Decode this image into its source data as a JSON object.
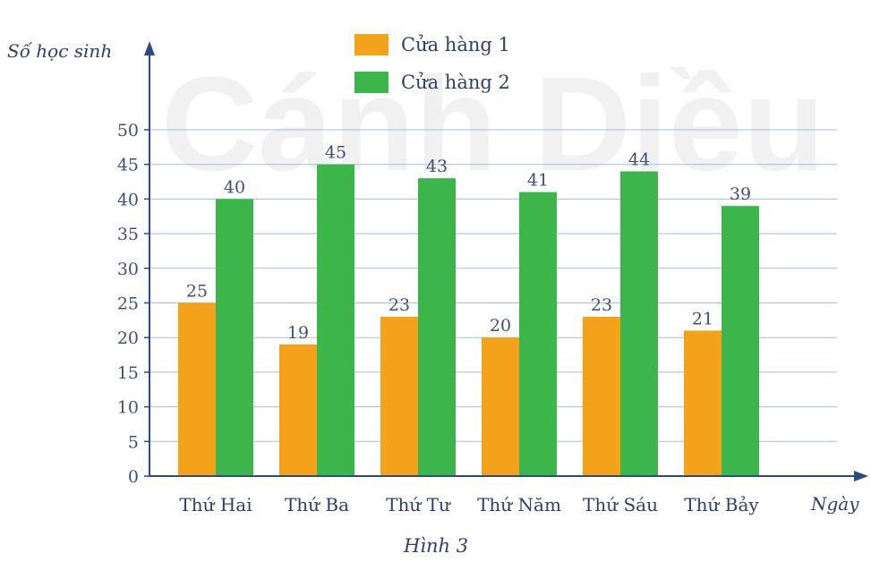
{
  "chart_data": {
    "type": "bar",
    "title": "",
    "ylabel": "Số học sinh",
    "xlabel": "Ngày",
    "caption": "Hình 3",
    "watermark": "Cánh Diều",
    "categories": [
      "Thứ Hai",
      "Thứ Ba",
      "Thứ Tư",
      "Thứ Năm",
      "Thứ Sáu",
      "Thứ Bảy"
    ],
    "series": [
      {
        "name": "Cửa hàng 1",
        "values": [
          25,
          19,
          23,
          20,
          23,
          21
        ],
        "color": "#f5a21b"
      },
      {
        "name": "Cửa hàng 2",
        "values": [
          40,
          45,
          43,
          41,
          44,
          39
        ],
        "color": "#3cb54a"
      }
    ],
    "ylim": [
      0,
      50
    ],
    "yticks": [
      0,
      5,
      10,
      15,
      20,
      25,
      30,
      35,
      40,
      45,
      50
    ],
    "grid": true,
    "legend_position": "top-center"
  }
}
